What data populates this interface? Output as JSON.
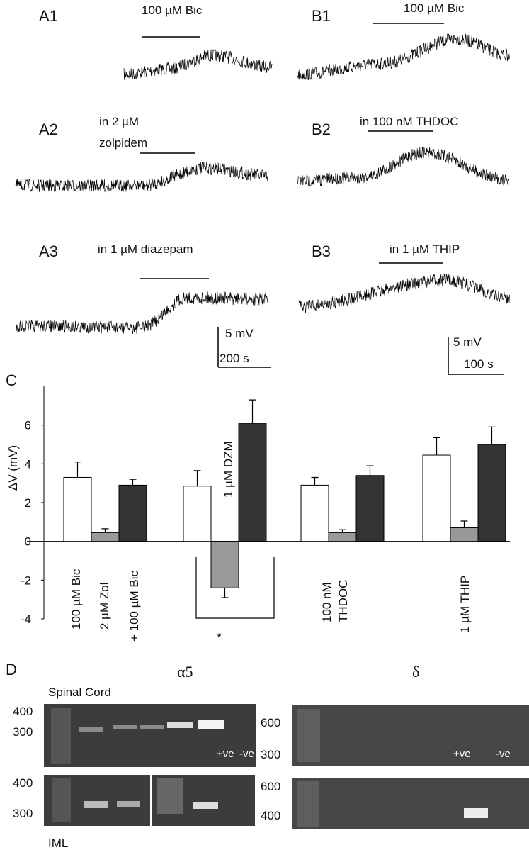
{
  "traces": [
    {
      "label": "A1",
      "annotation": [
        "100 µM Bic"
      ]
    },
    {
      "label": "B1",
      "annotation": [
        "100 µM Bic"
      ]
    },
    {
      "label": "A2",
      "annotation": [
        "in 2 µM",
        "zolpidem"
      ]
    },
    {
      "label": "B2",
      "annotation": [
        "in 100 nM THDOC"
      ]
    },
    {
      "label": "A3",
      "annotation": [
        "in 1 µM diazepam"
      ]
    },
    {
      "label": "B3",
      "annotation": [
        "in 1 µM THIP"
      ]
    }
  ],
  "scale_bars": [
    {
      "y": "5 mV",
      "x": "200 s"
    },
    {
      "y": "5 mV",
      "x": "100 s"
    }
  ],
  "chart_data": {
    "type": "bar",
    "panel_label": "C",
    "ylabel": "ΔV (mV)",
    "categories": [
      null,
      null,
      null,
      null
    ],
    "series": [
      {
        "color": "#ffffff",
        "values": [
          3.3,
          2.85,
          2.9,
          4.45
        ],
        "errors": [
          0.8,
          0.8,
          0.4,
          0.9
        ]
      },
      {
        "color": "#999999",
        "values": [
          0.45,
          -2.4,
          0.45,
          0.7
        ],
        "errors": [
          0.2,
          0.5,
          0.15,
          0.35
        ]
      },
      {
        "color": "#333333",
        "values": [
          2.9,
          6.1,
          3.4,
          5.0
        ],
        "errors": [
          0.3,
          1.2,
          0.5,
          0.9
        ]
      }
    ],
    "ylim": [
      -4,
      8
    ],
    "yticks": [
      -4,
      -2,
      0,
      2,
      4,
      6
    ],
    "annotations": [
      "100 µM Bic",
      "2 µM Zol",
      "+ 100 µM Bic",
      "1 µM DZM",
      "*",
      "100 nM",
      "THDOC",
      "1 µM THIP"
    ]
  },
  "gels": {
    "panel_label": "D",
    "left_title": "α5",
    "right_title": "δ",
    "top_label": "Spinal Cord",
    "bottom_label": "IML",
    "left_top_markers": [
      "400",
      "300"
    ],
    "left_bottom_markers": [
      "400",
      "300"
    ],
    "right_top_markers": [
      "600",
      "300"
    ],
    "right_bottom_markers": [
      "600",
      "400"
    ],
    "left_controls": [
      "+ve",
      "-ve"
    ],
    "right_controls": [
      "+ve",
      "-ve"
    ]
  }
}
